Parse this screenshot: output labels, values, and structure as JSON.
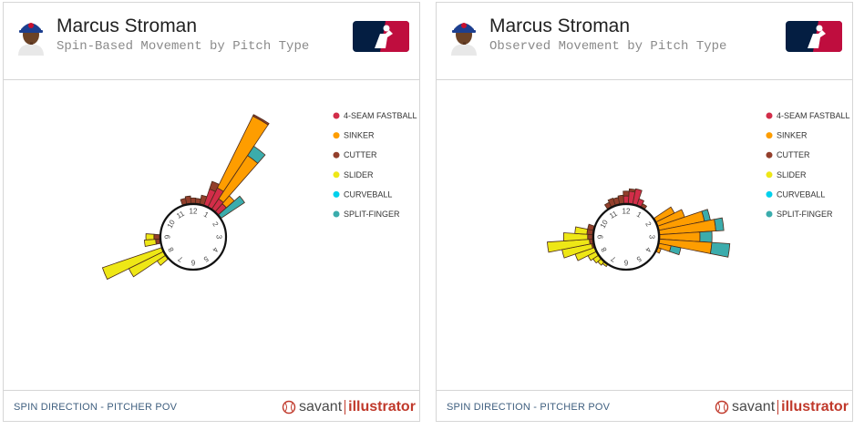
{
  "colors": {
    "fastball": "#d22d49",
    "sinker": "#fe9d00",
    "cutter": "#933f2c",
    "slider": "#eee716",
    "curveball": "#00d1ed",
    "splitter": "#3bacac",
    "footer_text": "#3f5f7f",
    "brand_red": "#c0392b"
  },
  "legend": [
    "4-SEAM FASTBALL",
    "SINKER",
    "CUTTER",
    "SLIDER",
    "CURVEBALL",
    "SPLIT-FINGER"
  ],
  "clock_labels": [
    "12",
    "1",
    "2",
    "3",
    "4",
    "5",
    "6",
    "7",
    "8",
    "9",
    "10",
    "11"
  ],
  "footer": {
    "left_text": "SPIN DIRECTION - PITCHER POV",
    "brand_savant": "savant",
    "brand_illustrator": "illustrator"
  },
  "chart_data": [
    {
      "type": "radial-bar",
      "player": "Marcus Stroman",
      "title": "Spin-Based Movement by Pitch Type",
      "bins": [
        {
          "angle_deg": 15,
          "values": [
            0,
            0,
            0.22,
            0,
            0,
            0
          ]
        },
        {
          "angle_deg": 22.5,
          "values": [
            0.42,
            0,
            0.2,
            0,
            0,
            0
          ]
        },
        {
          "angle_deg": 30,
          "values": [
            0.52,
            2.0,
            0.04,
            0,
            0,
            0
          ]
        },
        {
          "angle_deg": 37.5,
          "values": [
            0.3,
            1.3,
            0,
            0,
            0,
            0.28
          ]
        },
        {
          "angle_deg": 45,
          "values": [
            0.26,
            0.26,
            0,
            0,
            0,
            0
          ]
        },
        {
          "angle_deg": 52.5,
          "values": [
            0,
            0,
            0,
            0,
            0,
            0.7
          ]
        },
        {
          "angle_deg": 345,
          "values": [
            0,
            0,
            0.14,
            0,
            0,
            0
          ]
        },
        {
          "angle_deg": 352.5,
          "values": [
            0,
            0,
            0.18,
            0,
            0,
            0
          ]
        },
        {
          "angle_deg": 0,
          "values": [
            0,
            0,
            0.13,
            0,
            0,
            0
          ]
        },
        {
          "angle_deg": 7.5,
          "values": [
            0,
            0,
            0.12,
            0,
            0,
            0
          ]
        },
        {
          "angle_deg": 270,
          "values": [
            0,
            0,
            0.14,
            0.2,
            0,
            0
          ]
        },
        {
          "angle_deg": 262.5,
          "values": [
            0,
            0,
            0.1,
            0.28,
            0,
            0
          ]
        },
        {
          "angle_deg": 247.5,
          "values": [
            0,
            0,
            0,
            1.55,
            0,
            0
          ]
        },
        {
          "angle_deg": 240,
          "values": [
            0,
            0,
            0,
            0.95,
            0,
            0
          ]
        },
        {
          "angle_deg": 232.5,
          "values": [
            0,
            0,
            0,
            0.24,
            0,
            0
          ]
        }
      ]
    },
    {
      "type": "radial-bar",
      "player": "Marcus Stroman",
      "title": "Observed Movement by Pitch Type",
      "bins": [
        {
          "angle_deg": 330,
          "values": [
            0,
            0,
            0.12,
            0,
            0,
            0
          ]
        },
        {
          "angle_deg": 337.5,
          "values": [
            0,
            0,
            0.18,
            0,
            0,
            0
          ]
        },
        {
          "angle_deg": 345,
          "values": [
            0,
            0,
            0.16,
            0,
            0,
            0
          ]
        },
        {
          "angle_deg": 352.5,
          "values": [
            0,
            0,
            0.2,
            0,
            0,
            0
          ]
        },
        {
          "angle_deg": 0,
          "values": [
            0.18,
            0,
            0.12,
            0,
            0,
            0
          ]
        },
        {
          "angle_deg": 7.5,
          "values": [
            0.3,
            0,
            0.06,
            0,
            0,
            0
          ]
        },
        {
          "angle_deg": 15,
          "values": [
            0.38,
            0,
            0,
            0,
            0,
            0
          ]
        },
        {
          "angle_deg": 22.5,
          "values": [
            0.16,
            0,
            0,
            0,
            0,
            0
          ]
        },
        {
          "angle_deg": 30,
          "values": [
            0,
            0,
            0.08,
            0,
            0,
            0
          ]
        },
        {
          "angle_deg": 60,
          "values": [
            0,
            0.5,
            0,
            0,
            0,
            0
          ]
        },
        {
          "angle_deg": 67.5,
          "values": [
            0,
            0.7,
            0,
            0,
            0,
            0
          ]
        },
        {
          "angle_deg": 75,
          "values": [
            0,
            1.15,
            0,
            0,
            0,
            0.15
          ]
        },
        {
          "angle_deg": 82.5,
          "values": [
            0,
            1.4,
            0,
            0,
            0,
            0.2
          ]
        },
        {
          "angle_deg": 90,
          "values": [
            0,
            1.0,
            0,
            0,
            0,
            0.3
          ]
        },
        {
          "angle_deg": 97.5,
          "values": [
            0,
            1.3,
            0,
            0,
            0,
            0.45
          ]
        },
        {
          "angle_deg": 105,
          "values": [
            0,
            0.3,
            0,
            0,
            0,
            0.25
          ]
        },
        {
          "angle_deg": 112.5,
          "values": [
            0,
            0.08,
            0,
            0,
            0,
            0
          ]
        },
        {
          "angle_deg": 255,
          "values": [
            0,
            0,
            0.04,
            0.75,
            0,
            0
          ]
        },
        {
          "angle_deg": 262.5,
          "values": [
            0,
            0,
            0.08,
            1.05,
            0,
            0
          ]
        },
        {
          "angle_deg": 270,
          "values": [
            0,
            0,
            0.12,
            0.6,
            0,
            0
          ]
        },
        {
          "angle_deg": 277.5,
          "values": [
            0,
            0,
            0.14,
            0.3,
            0,
            0
          ]
        },
        {
          "angle_deg": 285,
          "values": [
            0,
            0,
            0.14,
            0,
            0,
            0
          ]
        },
        {
          "angle_deg": 247.5,
          "values": [
            0,
            0,
            0,
            0.5,
            0,
            0
          ]
        },
        {
          "angle_deg": 240,
          "values": [
            0,
            0,
            0,
            0.22,
            0,
            0
          ]
        },
        {
          "angle_deg": 232.5,
          "values": [
            0,
            0,
            0,
            0.15,
            0,
            0
          ]
        },
        {
          "angle_deg": 225,
          "values": [
            0,
            0,
            0,
            0.1,
            0,
            0
          ]
        },
        {
          "angle_deg": 217.5,
          "values": [
            0,
            0,
            0,
            0.05,
            0,
            0
          ]
        }
      ]
    }
  ]
}
